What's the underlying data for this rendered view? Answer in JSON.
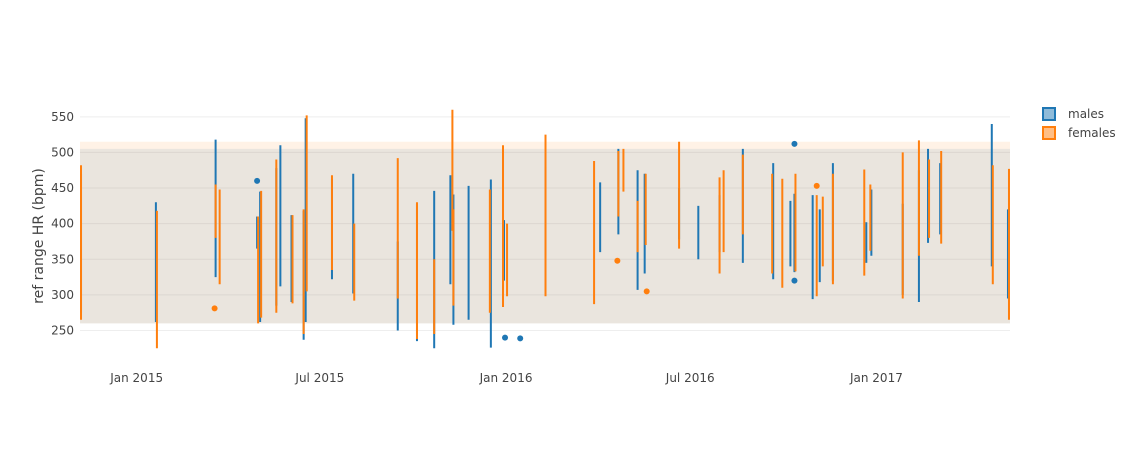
{
  "chart_data": {
    "type": "box",
    "title": "",
    "ylabel": "ref range HR (bpm)",
    "xlabel": "",
    "ylim": [
      217,
      568
    ],
    "xlim": [
      "2014-11-06",
      "2017-05-13"
    ],
    "grid": true,
    "legend_position": "top-right",
    "x_ticks": [
      {
        "date": "2015-01-01",
        "label": "Jan 2015"
      },
      {
        "date": "2015-07-01",
        "label": "Jul 2015"
      },
      {
        "date": "2016-01-01",
        "label": "Jan 2016"
      },
      {
        "date": "2016-07-01",
        "label": "Jul 2016"
      },
      {
        "date": "2017-01-01",
        "label": "Jan 2017"
      }
    ],
    "y_ticks": [
      250,
      300,
      350,
      400,
      450,
      500,
      550
    ],
    "reference_bands": [
      {
        "series": "males",
        "y_low": 260,
        "y_high": 505,
        "color": "#1f77b4"
      },
      {
        "series": "females",
        "y_low": 260,
        "y_high": 515,
        "color": "#ff7f0e"
      }
    ],
    "series": [
      {
        "name": "males",
        "color": "#1f77b4",
        "ranges": [
          [
            "2014-11-07",
            275,
            470
          ],
          [
            "2015-01-20",
            262,
            430
          ],
          [
            "2015-03-20",
            325,
            518
          ],
          [
            "2015-04-30",
            365,
            410
          ],
          [
            "2015-05-03",
            262,
            445
          ],
          [
            "2015-05-19",
            285,
            478
          ],
          [
            "2015-05-23",
            312,
            510
          ],
          [
            "2015-06-03",
            290,
            412
          ],
          [
            "2015-06-15",
            237,
            418
          ],
          [
            "2015-06-17",
            262,
            548
          ],
          [
            "2015-07-13",
            322,
            463
          ],
          [
            "2015-08-03",
            302,
            470
          ],
          [
            "2015-09-16",
            250,
            375
          ],
          [
            "2015-10-05",
            235,
            428
          ],
          [
            "2015-10-22",
            225,
            446
          ],
          [
            "2015-11-07",
            315,
            468
          ],
          [
            "2015-11-10",
            258,
            441
          ],
          [
            "2015-11-25",
            265,
            453
          ],
          [
            "2015-12-17",
            226,
            462
          ],
          [
            "2015-12-30",
            320,
            405
          ],
          [
            "2016-02-09",
            355,
            480
          ],
          [
            "2016-04-03",
            360,
            458
          ],
          [
            "2016-04-21",
            385,
            505
          ],
          [
            "2016-05-10",
            307,
            475
          ],
          [
            "2016-05-17",
            330,
            470
          ],
          [
            "2016-06-20",
            378,
            450
          ],
          [
            "2016-07-09",
            350,
            425
          ],
          [
            "2016-07-30",
            360,
            440
          ],
          [
            "2016-08-22",
            345,
            505
          ],
          [
            "2016-09-21",
            322,
            485
          ],
          [
            "2016-10-08",
            340,
            432
          ],
          [
            "2016-10-12",
            332,
            442
          ],
          [
            "2016-10-30",
            294,
            440
          ],
          [
            "2016-11-06",
            318,
            420
          ],
          [
            "2016-11-19",
            320,
            485
          ],
          [
            "2016-12-22",
            345,
            402
          ],
          [
            "2016-12-27",
            355,
            448
          ],
          [
            "2017-01-27",
            300,
            428
          ],
          [
            "2017-02-12",
            290,
            475
          ],
          [
            "2017-02-21",
            373,
            505
          ],
          [
            "2017-03-05",
            385,
            485
          ],
          [
            "2017-04-25",
            340,
            540
          ],
          [
            "2017-05-11",
            295,
            420
          ]
        ],
        "outliers": [
          [
            "2015-04-30",
            460
          ],
          [
            "2015-12-31",
            240
          ],
          [
            "2016-01-15",
            239
          ],
          [
            "2016-10-12",
            512
          ],
          [
            "2016-10-12",
            320
          ]
        ]
      },
      {
        "name": "females",
        "color": "#ff7f0e",
        "ranges": [
          [
            "2014-11-07",
            265,
            482
          ],
          [
            "2015-01-21",
            225,
            418
          ],
          [
            "2015-03-20",
            380,
            455
          ],
          [
            "2015-03-24",
            315,
            448
          ],
          [
            "2015-05-01",
            260,
            410
          ],
          [
            "2015-05-04",
            268,
            446
          ],
          [
            "2015-05-19",
            275,
            490
          ],
          [
            "2015-06-04",
            288,
            412
          ],
          [
            "2015-06-15",
            245,
            420
          ],
          [
            "2015-06-18",
            305,
            552
          ],
          [
            "2015-07-13",
            335,
            468
          ],
          [
            "2015-08-04",
            292,
            400
          ],
          [
            "2015-09-16",
            295,
            492
          ],
          [
            "2015-10-05",
            238,
            430
          ],
          [
            "2015-10-22",
            245,
            350
          ],
          [
            "2015-11-09",
            390,
            560
          ],
          [
            "2015-11-10",
            285,
            420
          ],
          [
            "2015-12-16",
            275,
            448
          ],
          [
            "2015-12-29",
            283,
            510
          ],
          [
            "2016-01-02",
            298,
            400
          ],
          [
            "2016-02-09",
            298,
            525
          ],
          [
            "2016-03-28",
            287,
            488
          ],
          [
            "2016-04-21",
            410,
            502
          ],
          [
            "2016-04-26",
            445,
            505
          ],
          [
            "2016-05-10",
            360,
            432
          ],
          [
            "2016-05-18",
            370,
            470
          ],
          [
            "2016-06-20",
            365,
            515
          ],
          [
            "2016-07-30",
            330,
            465
          ],
          [
            "2016-08-22",
            385,
            497
          ],
          [
            "2016-08-03",
            360,
            475
          ],
          [
            "2016-09-20",
            330,
            470
          ],
          [
            "2016-09-30",
            310,
            463
          ],
          [
            "2016-10-13",
            333,
            470
          ],
          [
            "2016-11-03",
            298,
            440
          ],
          [
            "2016-11-09",
            340,
            438
          ],
          [
            "2016-11-19",
            315,
            470
          ],
          [
            "2016-12-20",
            327,
            476
          ],
          [
            "2016-12-26",
            362,
            455
          ],
          [
            "2017-01-27",
            295,
            500
          ],
          [
            "2017-02-12",
            355,
            517
          ],
          [
            "2017-02-22",
            380,
            490
          ],
          [
            "2017-03-06",
            372,
            502
          ],
          [
            "2017-04-26",
            315,
            482
          ],
          [
            "2017-05-12",
            265,
            477
          ]
        ],
        "outliers": [
          [
            "2015-03-19",
            281
          ],
          [
            "2016-04-20",
            348
          ],
          [
            "2016-05-19",
            305
          ],
          [
            "2016-11-03",
            453
          ]
        ]
      }
    ]
  }
}
